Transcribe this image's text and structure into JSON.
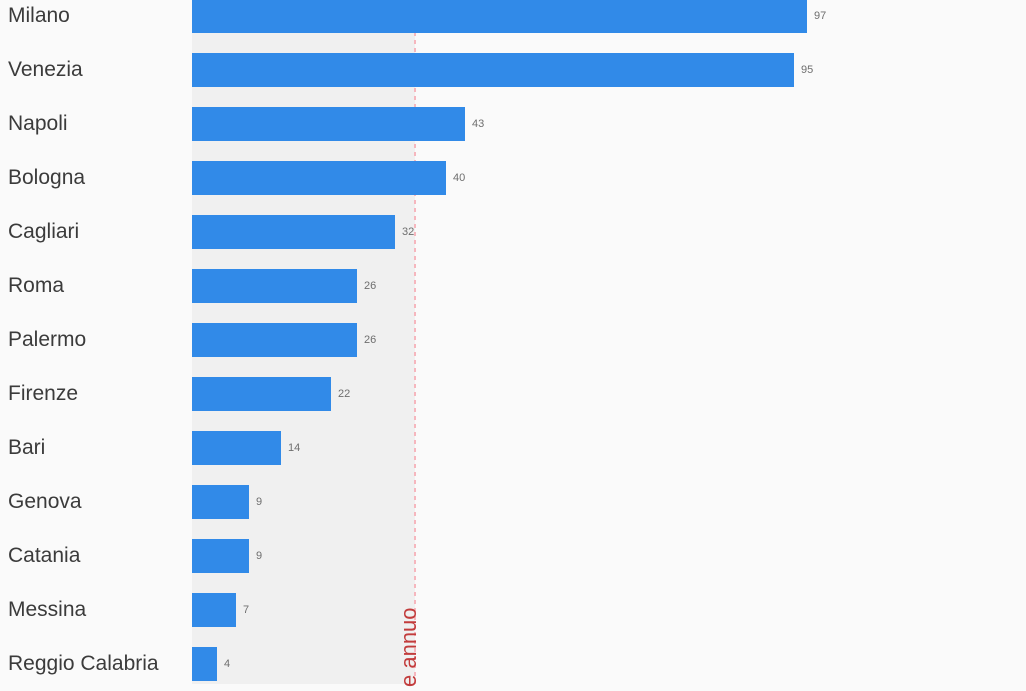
{
  "chart_data": {
    "type": "bar",
    "orientation": "horizontal",
    "title": "",
    "xlabel": "",
    "ylabel": "",
    "categories": [
      "Milano",
      "Venezia",
      "Napoli",
      "Bologna",
      "Cagliari",
      "Roma",
      "Palermo",
      "Firenze",
      "Bari",
      "Genova",
      "Catania",
      "Messina",
      "Reggio Calabria"
    ],
    "values": [
      97,
      95,
      43,
      40,
      32,
      26,
      26,
      22,
      14,
      9,
      9,
      7,
      4
    ],
    "value_labels_shown": true,
    "bar_color": "#318ae8",
    "category_label_color": "#3b3b3b",
    "value_label_color": "#6e6e6e",
    "background_color": "#fafafa",
    "shaded_band": {
      "from": 0,
      "to": 35,
      "color": "#f0f0f0"
    },
    "reference_line": {
      "value_estimate": 35,
      "label_visible": "e annuo",
      "label_color": "#c23c3c",
      "line_color": "#f6b7be",
      "style": "dashed"
    },
    "legend": "none",
    "grid": "off"
  }
}
